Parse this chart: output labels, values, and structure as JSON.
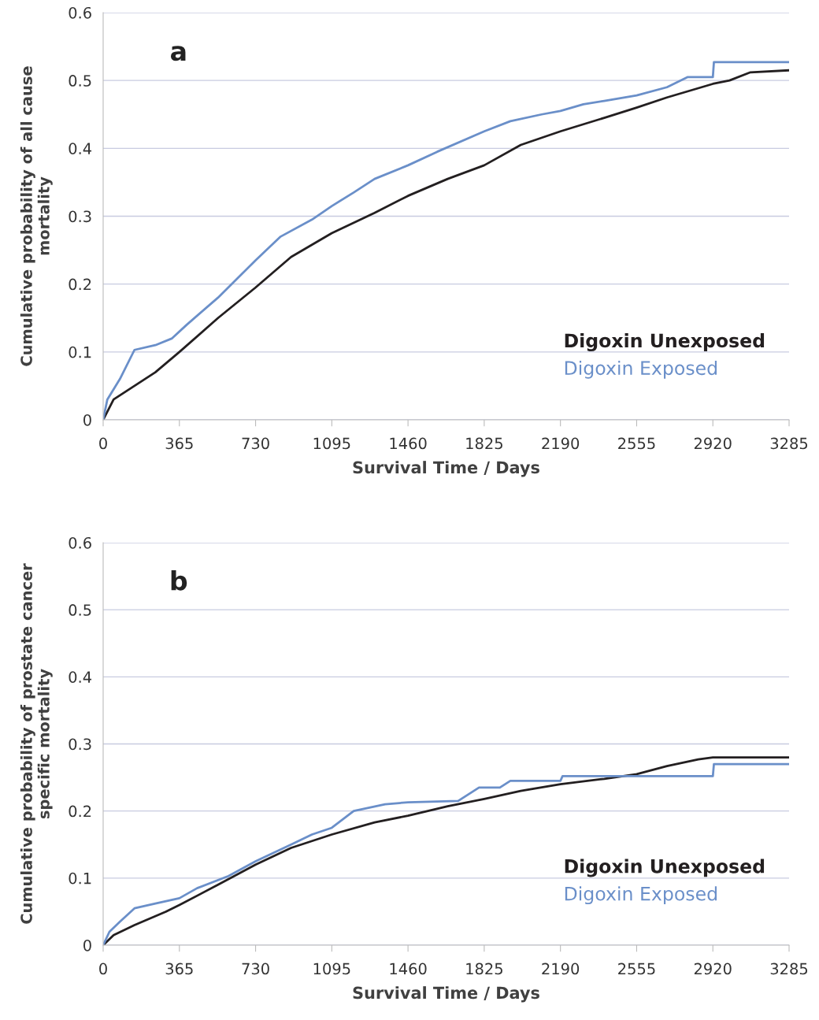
{
  "chart_data": [
    {
      "type": "line",
      "title": "a",
      "xlabel": "Survival Time / Days",
      "ylabel": "Cumulative probability of all cause\nmortality",
      "xlim": [
        0,
        3285
      ],
      "xticks": [
        0,
        365,
        730,
        1095,
        1460,
        1825,
        2190,
        2555,
        2920,
        3285
      ],
      "ylim": [
        0,
        0.6
      ],
      "yticks": [
        0,
        0.1,
        0.2,
        0.3,
        0.4,
        0.5,
        0.6
      ],
      "grid": "y",
      "legend": "bottom right",
      "series": [
        {
          "name": "Digoxin Unexposed",
          "color": "#231f20",
          "x": [
            0,
            50,
            150,
            250,
            365,
            550,
            730,
            900,
            1095,
            1300,
            1460,
            1650,
            1825,
            2000,
            2190,
            2400,
            2555,
            2700,
            2920,
            3000,
            3100,
            3285
          ],
          "values": [
            0,
            0.03,
            0.05,
            0.07,
            0.1,
            0.15,
            0.195,
            0.24,
            0.275,
            0.305,
            0.33,
            0.355,
            0.375,
            0.405,
            0.425,
            0.445,
            0.46,
            0.475,
            0.495,
            0.5,
            0.512,
            0.515
          ]
        },
        {
          "name": "Digoxin Exposed",
          "color": "#6a8fc9",
          "x": [
            0,
            20,
            80,
            150,
            250,
            330,
            400,
            550,
            730,
            850,
            1000,
            1095,
            1200,
            1300,
            1460,
            1600,
            1825,
            1950,
            2100,
            2190,
            2300,
            2400,
            2555,
            2700,
            2800,
            2920,
            2925,
            3285
          ],
          "values": [
            0,
            0.03,
            0.06,
            0.103,
            0.11,
            0.12,
            0.14,
            0.18,
            0.235,
            0.27,
            0.295,
            0.315,
            0.335,
            0.355,
            0.375,
            0.395,
            0.425,
            0.44,
            0.45,
            0.455,
            0.465,
            0.47,
            0.478,
            0.49,
            0.505,
            0.505,
            0.527,
            0.527
          ]
        }
      ]
    },
    {
      "type": "line",
      "title": "b",
      "xlabel": "Survival Time / Days",
      "ylabel": "Cumulative probability of prostate cancer\nspecific mortality",
      "xlim": [
        0,
        3285
      ],
      "xticks": [
        0,
        365,
        730,
        1095,
        1460,
        1825,
        2190,
        2555,
        2920,
        3285
      ],
      "ylim": [
        0,
        0.6
      ],
      "yticks": [
        0,
        0.1,
        0.2,
        0.3,
        0.4,
        0.5,
        0.6
      ],
      "grid": "y",
      "legend": "bottom right",
      "series": [
        {
          "name": "Digoxin Unexposed",
          "color": "#231f20",
          "x": [
            0,
            50,
            150,
            300,
            365,
            550,
            730,
            900,
            1095,
            1300,
            1460,
            1650,
            1825,
            2000,
            2190,
            2400,
            2555,
            2700,
            2850,
            2920,
            3285
          ],
          "values": [
            0,
            0.015,
            0.03,
            0.05,
            0.06,
            0.09,
            0.12,
            0.145,
            0.165,
            0.183,
            0.193,
            0.207,
            0.218,
            0.23,
            0.24,
            0.248,
            0.255,
            0.267,
            0.277,
            0.28,
            0.28
          ]
        },
        {
          "name": "Digoxin Exposed",
          "color": "#6a8fc9",
          "x": [
            0,
            30,
            80,
            150,
            250,
            365,
            450,
            600,
            730,
            900,
            1000,
            1095,
            1200,
            1350,
            1460,
            1700,
            1800,
            1900,
            1950,
            2190,
            2200,
            2920,
            2925,
            3285
          ],
          "values": [
            0,
            0.02,
            0.035,
            0.055,
            0.062,
            0.07,
            0.085,
            0.103,
            0.125,
            0.15,
            0.165,
            0.175,
            0.2,
            0.21,
            0.213,
            0.215,
            0.235,
            0.235,
            0.245,
            0.245,
            0.252,
            0.252,
            0.27,
            0.27
          ]
        }
      ]
    }
  ]
}
